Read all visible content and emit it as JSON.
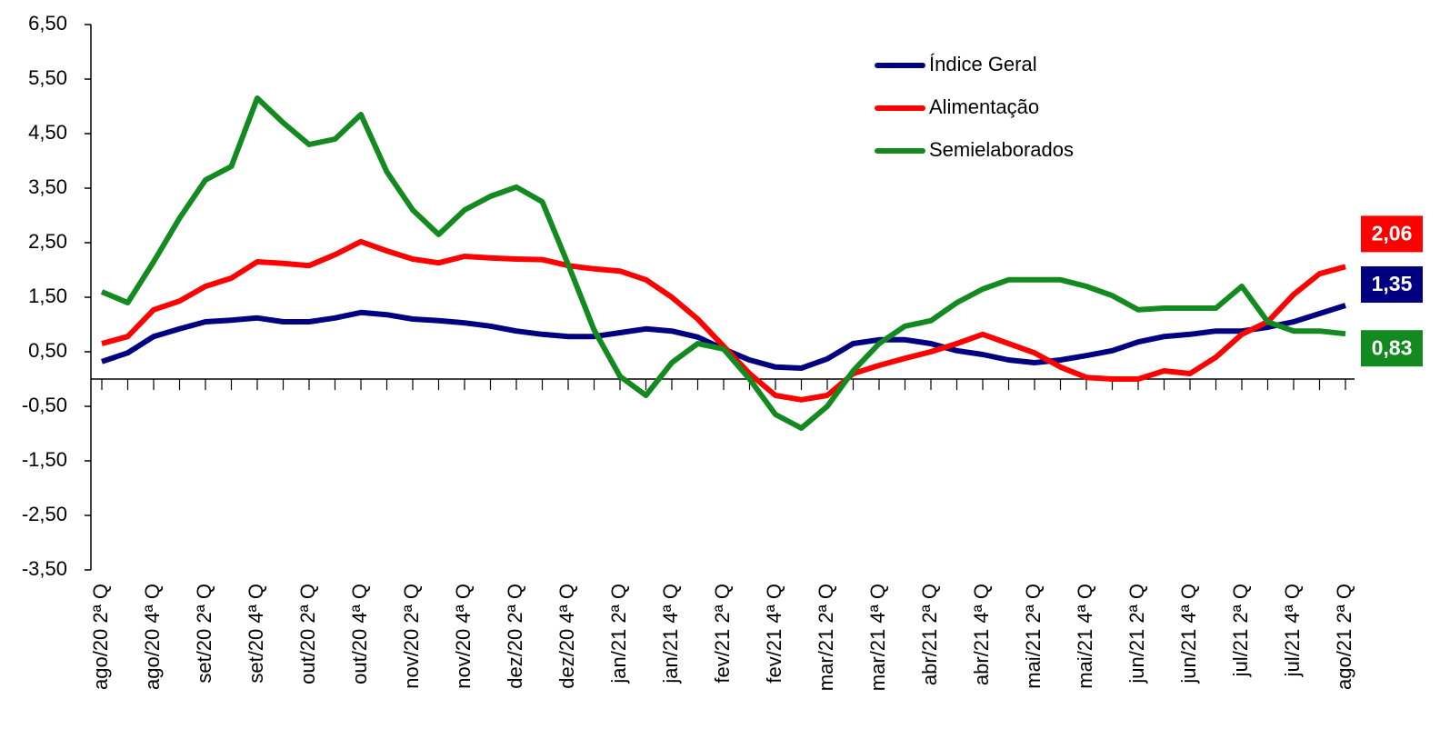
{
  "chart_data": {
    "type": "line",
    "categories": [
      "ago/20 2ª Q",
      null,
      "ago/20 4ª Q",
      null,
      "set/20 2ª Q",
      null,
      "set/20 4ª Q",
      null,
      "out/20 2ª Q",
      null,
      "out/20 4ª Q",
      null,
      "nov/20 2ª Q",
      null,
      "nov/20 4ª Q",
      null,
      "dez/20 2ª Q",
      null,
      "dez/20 4ª Q",
      null,
      "jan/21 2ª Q",
      null,
      "jan/21 4ª Q",
      null,
      "fev/21 2ª Q",
      null,
      "fev/21 4ª Q",
      null,
      "mar/21 2ª Q",
      null,
      "mar/21 4ª Q",
      null,
      "abr/21 2ª Q",
      null,
      "abr/21 4ª Q",
      null,
      "mai/21 2ª Q",
      null,
      "mai/21 4ª Q",
      null,
      "jun/21 2ª Q",
      null,
      "jun/21 4ª Q",
      null,
      "jul/21 2ª Q",
      null,
      "jul/21 4ª Q",
      null,
      "ago/21 2ª Q"
    ],
    "series": [
      {
        "name": "Índice Geral",
        "color": "#000080",
        "values": [
          0.32,
          0.48,
          0.78,
          0.92,
          1.05,
          1.08,
          1.12,
          1.05,
          1.05,
          1.12,
          1.22,
          1.18,
          1.1,
          1.07,
          1.03,
          0.97,
          0.88,
          0.82,
          0.78,
          0.78,
          0.85,
          0.92,
          0.88,
          0.77,
          0.55,
          0.35,
          0.22,
          0.2,
          0.37,
          0.65,
          0.72,
          0.72,
          0.65,
          0.52,
          0.45,
          0.35,
          0.3,
          0.35,
          0.43,
          0.52,
          0.68,
          0.78,
          0.82,
          0.88,
          0.88,
          0.95,
          1.05,
          1.2,
          1.35
        ],
        "value_labels": [
          null,
          null,
          null,
          null,
          null,
          null,
          null,
          null,
          null,
          null,
          null,
          null,
          null,
          null,
          null,
          null,
          null,
          null,
          null,
          null,
          null,
          null,
          null,
          null,
          null,
          null,
          null,
          null,
          null,
          null,
          null,
          null,
          null,
          null,
          null,
          null,
          null,
          null,
          null,
          null,
          null,
          null,
          null,
          null,
          null,
          null,
          null,
          null,
          "1,35"
        ]
      },
      {
        "name": "Alimentação",
        "color": "#ff0000",
        "values": [
          0.65,
          0.78,
          1.27,
          1.43,
          1.7,
          1.85,
          2.15,
          2.12,
          2.08,
          2.28,
          2.52,
          2.35,
          2.2,
          2.13,
          2.25,
          2.22,
          2.2,
          2.19,
          2.08,
          2.02,
          1.98,
          1.82,
          1.5,
          1.1,
          0.6,
          0.1,
          -0.3,
          -0.38,
          -0.3,
          0.1,
          0.25,
          0.38,
          0.5,
          0.65,
          0.82,
          0.65,
          0.48,
          0.22,
          0.03,
          0.0,
          0.0,
          0.15,
          0.1,
          0.4,
          0.82,
          1.05,
          1.55,
          1.93,
          2.06
        ],
        "value_labels": [
          null,
          null,
          null,
          null,
          null,
          null,
          null,
          null,
          null,
          null,
          null,
          null,
          null,
          null,
          null,
          null,
          null,
          null,
          null,
          null,
          null,
          null,
          null,
          null,
          null,
          null,
          null,
          null,
          null,
          null,
          null,
          null,
          null,
          null,
          null,
          null,
          null,
          null,
          null,
          null,
          null,
          null,
          null,
          null,
          null,
          null,
          null,
          null,
          "2,06"
        ]
      },
      {
        "name": "Semielaborados",
        "color": "#138a1f",
        "values": [
          1.6,
          1.4,
          2.15,
          2.95,
          3.65,
          3.9,
          5.15,
          4.7,
          4.3,
          4.4,
          4.85,
          3.8,
          3.1,
          2.65,
          3.1,
          3.35,
          3.52,
          3.25,
          2.1,
          0.9,
          0.05,
          -0.3,
          0.3,
          0.65,
          0.55,
          0.0,
          -0.65,
          -0.9,
          -0.5,
          0.15,
          0.65,
          0.97,
          1.07,
          1.4,
          1.65,
          1.82,
          1.82,
          1.82,
          1.7,
          1.53,
          1.27,
          1.3,
          1.3,
          1.3,
          1.7,
          1.05,
          0.88,
          0.88,
          0.83
        ],
        "value_labels": [
          null,
          null,
          null,
          null,
          null,
          null,
          null,
          null,
          null,
          null,
          null,
          null,
          null,
          null,
          null,
          null,
          null,
          null,
          null,
          null,
          null,
          null,
          null,
          null,
          null,
          null,
          null,
          null,
          null,
          null,
          null,
          null,
          null,
          null,
          null,
          null,
          null,
          null,
          null,
          null,
          null,
          null,
          null,
          null,
          null,
          null,
          null,
          null,
          "0,83"
        ]
      }
    ],
    "ylim": [
      -3.5,
      6.5
    ],
    "yticks": [
      {
        "value": -3.5,
        "label": "-3,50"
      },
      {
        "value": -2.5,
        "label": "-2,50"
      },
      {
        "value": -1.5,
        "label": "-1,50"
      },
      {
        "value": -0.5,
        "label": "-0,50"
      },
      {
        "value": 0.5,
        "label": "0,50"
      },
      {
        "value": 1.5,
        "label": "1,50"
      },
      {
        "value": 2.5,
        "label": "2,50"
      },
      {
        "value": 3.5,
        "label": "3,50"
      },
      {
        "value": 4.5,
        "label": "4,50"
      },
      {
        "value": 5.5,
        "label": "5,50"
      },
      {
        "value": 6.5,
        "label": "6,50"
      }
    ],
    "grid": false,
    "legend": "upper right"
  }
}
